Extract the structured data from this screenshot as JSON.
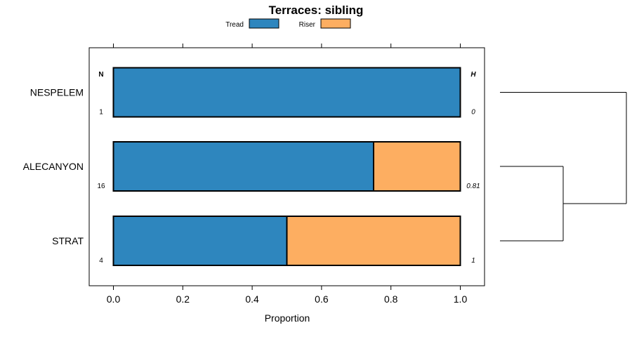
{
  "chart_data": {
    "type": "bar",
    "orientation": "horizontal",
    "stacked": true,
    "title": "Terraces: sibling",
    "xlabel": "Proportion",
    "ylabel": "",
    "xlim": [
      -0.07,
      1.07
    ],
    "x_ticks": [
      0,
      0.2,
      0.4,
      0.6,
      0.8,
      1
    ],
    "x_tick_labels": [
      "0.0",
      "0.2",
      "0.4",
      "0.6",
      "0.8",
      "1.0"
    ],
    "categories": [
      "NESPELEM",
      "ALECANYON",
      "STRAT"
    ],
    "series": [
      {
        "name": "Tread",
        "color": "#2e86be",
        "values": [
          1.0,
          0.75,
          0.5
        ]
      },
      {
        "name": "Riser",
        "color": "#fdae61",
        "values": [
          0.0,
          0.25,
          0.5
        ]
      }
    ],
    "n_header": "N",
    "n_values": [
      "1",
      "16",
      "4"
    ],
    "h_header": "H",
    "h_values": [
      "0",
      "0.81",
      "1"
    ],
    "legend_position": "top",
    "dendrogram": "ALECANYON and STRAT cluster first, then join NESPELEM"
  }
}
